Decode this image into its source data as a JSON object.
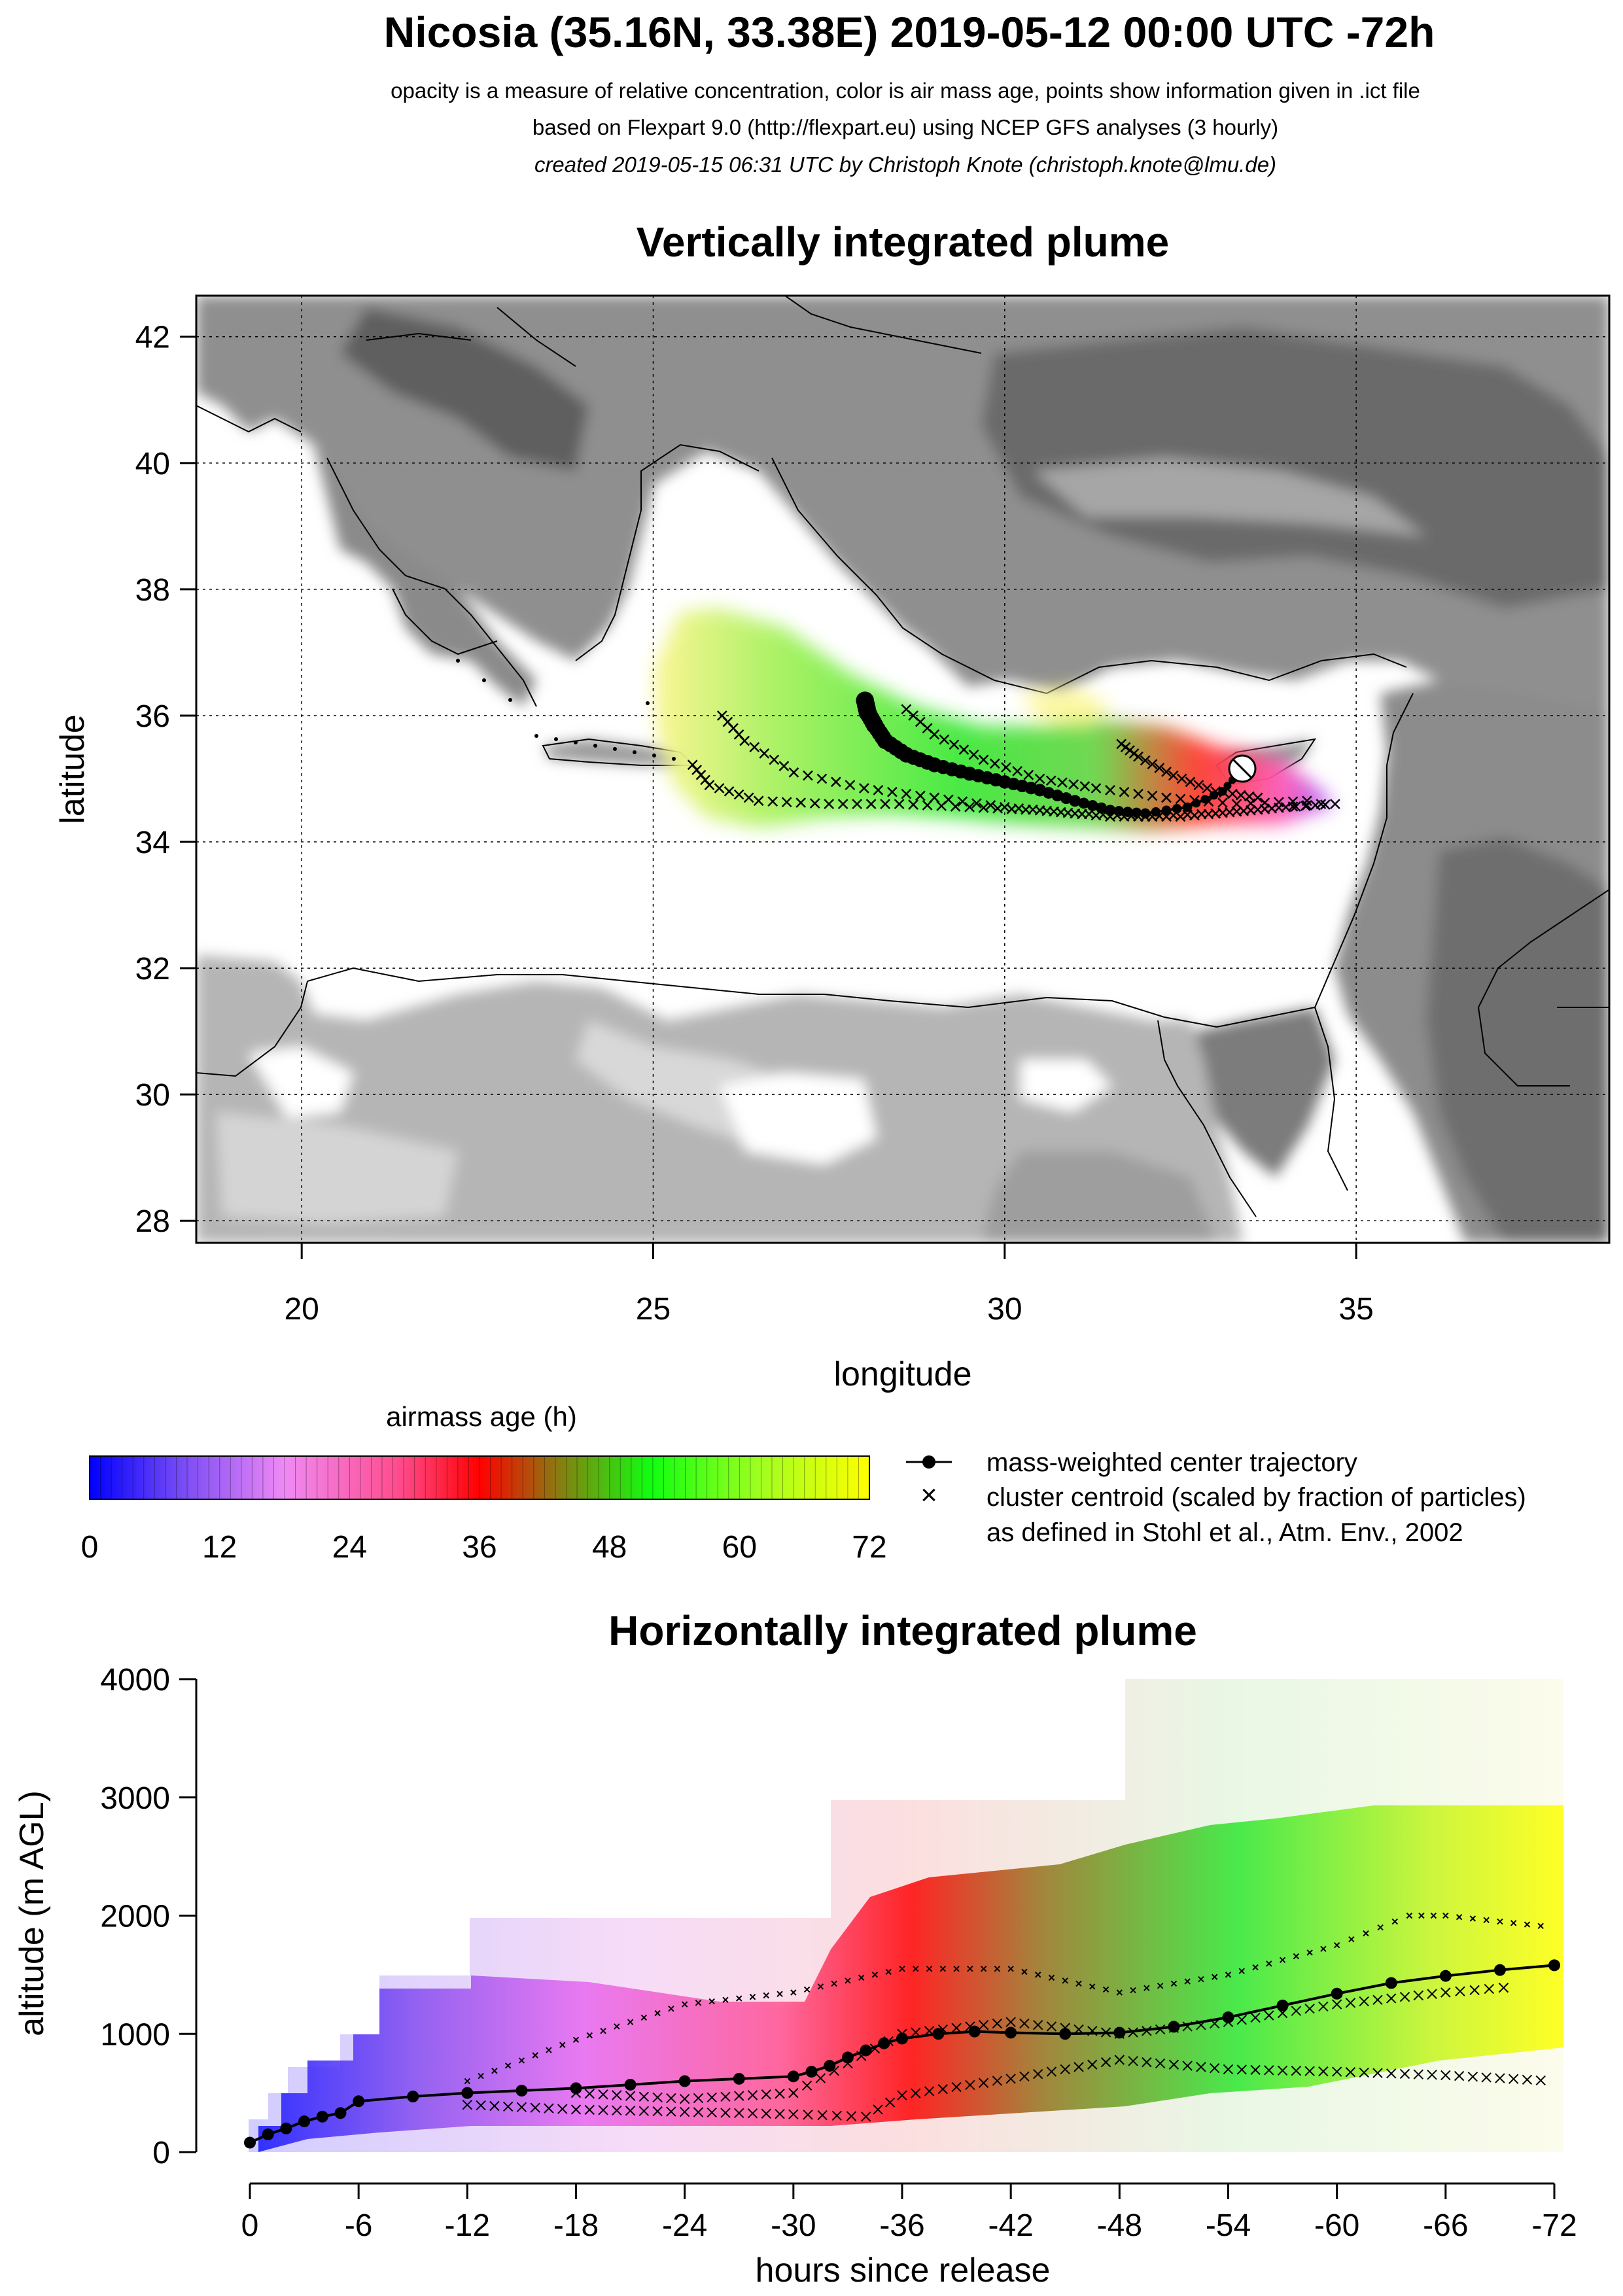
{
  "header": {
    "title": "Nicosia (35.16N, 33.38E) 2019-05-12 00:00 UTC -72h",
    "line1": "opacity is a measure of relative concentration, color is air mass age, points show information given in .ict file",
    "line2": "based on Flexpart 9.0 (http://flexpart.eu) using NCEP GFS analyses (3 hourly)",
    "line3": "created 2019-05-15 06:31 UTC by Christoph Knote (christoph.knote@lmu.de)"
  },
  "colors": {
    "plume_scale": [
      "#0000ff",
      "#ff80ff",
      "#ff0000",
      "#00ff00",
      "#ffff00"
    ],
    "land": "#8c8c8c",
    "sea": "#ffffff",
    "grid": "#000000"
  },
  "legend": {
    "colorbar_title": "airmass age (h)",
    "colorbar_ticks": [
      "0",
      "12",
      "24",
      "36",
      "48",
      "60",
      "72"
    ],
    "line_label": "mass-weighted center trajectory",
    "cross_label_1": "cluster centroid (scaled by fraction of particles)",
    "cross_label_2": "as defined in Stohl et al., Atm. Env., 2002"
  },
  "chart_data": [
    {
      "type": "map",
      "title": "Vertically integrated plume",
      "xlabel": "longitude",
      "ylabel": "latitude",
      "xlim": [
        18.5,
        38.6
      ],
      "ylim": [
        27.65,
        42.65
      ],
      "xticks": [
        20,
        25,
        30,
        35
      ],
      "yticks": [
        28,
        30,
        32,
        34,
        36,
        38,
        40,
        42
      ],
      "grid": true,
      "release_point": {
        "lon": 33.38,
        "lat": 35.16
      },
      "series": [
        {
          "name": "mass-weighted center trajectory",
          "lon": [
            33.38,
            33.1,
            32.6,
            32.0,
            31.5,
            31.0,
            30.5,
            30.0,
            29.5,
            29.0,
            28.6,
            28.3,
            28.15,
            28.05,
            28.0
          ],
          "lat": [
            35.16,
            34.8,
            34.55,
            34.45,
            34.5,
            34.65,
            34.82,
            34.95,
            35.08,
            35.22,
            35.38,
            35.6,
            35.85,
            36.05,
            36.3
          ]
        },
        {
          "name": "cluster centroid 1",
          "lon": [
            34.7,
            34.0,
            33.0,
            32.0,
            31.0,
            30.0,
            29.0,
            28.0,
            27.0,
            26.3,
            25.9
          ],
          "lat": [
            34.6,
            34.55,
            34.45,
            34.4,
            34.45,
            34.55,
            34.7,
            34.85,
            35.1,
            35.6,
            36.1
          ]
        },
        {
          "name": "cluster centroid 2",
          "lon": [
            34.5,
            33.5,
            32.5,
            31.5,
            30.5,
            29.5,
            28.5,
            27.5,
            26.5,
            25.8,
            25.5
          ],
          "lat": [
            34.6,
            34.5,
            34.4,
            34.4,
            34.5,
            34.55,
            34.6,
            34.6,
            34.65,
            34.9,
            35.3
          ]
        },
        {
          "name": "cluster centroid 3",
          "lon": [
            33.6,
            33.0,
            32.4,
            31.9,
            31.6
          ],
          "lat": [
            34.7,
            34.8,
            35.05,
            35.35,
            35.6
          ]
        },
        {
          "name": "cluster centroid 4",
          "lon": [
            34.3,
            33.3,
            32.3,
            31.3,
            30.5,
            29.7,
            29.0,
            28.5
          ],
          "lat": [
            34.65,
            34.6,
            34.7,
            34.85,
            35.0,
            35.3,
            35.7,
            36.2
          ]
        }
      ]
    },
    {
      "type": "line",
      "title": "Horizontally integrated plume",
      "xlabel": "hours since release",
      "ylabel": "altitude (m AGL)",
      "xlim": [
        0,
        -72
      ],
      "ylim": [
        0,
        4000
      ],
      "xticks": [
        "0",
        "-6",
        "-12",
        "-18",
        "-24",
        "-30",
        "-36",
        "-42",
        "-48",
        "-54",
        "-60",
        "-66",
        "-72"
      ],
      "yticks": [
        "0",
        "1000",
        "2000",
        "3000",
        "4000"
      ],
      "grid": false,
      "series": [
        {
          "name": "mass-weighted center trajectory",
          "x": [
            0,
            -1,
            -2,
            -3,
            -4,
            -5,
            -6,
            -9,
            -12,
            -15,
            -18,
            -21,
            -24,
            -27,
            -30,
            -31,
            -32,
            -33,
            -34,
            -35,
            -36,
            -38,
            -40,
            -42,
            -45,
            -48,
            -51,
            -54,
            -57,
            -60,
            -63,
            -66,
            -69,
            -72
          ],
          "y": [
            80,
            150,
            200,
            260,
            300,
            330,
            430,
            470,
            500,
            520,
            540,
            570,
            600,
            620,
            640,
            680,
            730,
            800,
            860,
            920,
            960,
            1000,
            1020,
            1010,
            1000,
            1010,
            1060,
            1140,
            1240,
            1340,
            1430,
            1490,
            1540,
            1580
          ]
        },
        {
          "name": "cluster centroid high",
          "x": [
            -12,
            -18,
            -24,
            -30,
            -36,
            -42,
            -48,
            -54,
            -60,
            -64,
            -66,
            -69,
            -72
          ],
          "y": [
            600,
            950,
            1250,
            1350,
            1550,
            1550,
            1350,
            1500,
            1750,
            2000,
            2000,
            1950,
            1900
          ]
        },
        {
          "name": "cluster centroid low",
          "x": [
            -12,
            -18,
            -24,
            -30,
            -34,
            -36,
            -42,
            -48,
            -54,
            -60,
            -66,
            -72
          ],
          "y": [
            400,
            360,
            340,
            320,
            300,
            480,
            620,
            780,
            700,
            680,
            650,
            600
          ]
        },
        {
          "name": "cluster centroid mid",
          "x": [
            -18,
            -24,
            -30,
            -36,
            -42,
            -48,
            -54,
            -60,
            -66,
            -70
          ],
          "y": [
            500,
            450,
            500,
            1000,
            1100,
            1000,
            1100,
            1250,
            1350,
            1400
          ]
        }
      ]
    }
  ]
}
